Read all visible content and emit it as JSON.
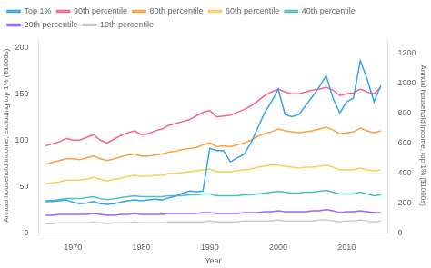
{
  "chart_data": {
    "type": "line",
    "xlabel": "Year",
    "ylabel": "Annual household income, excluding top 1% ($1000s)",
    "y2label": "Annual household income, top 1% ($1000s)",
    "x": [
      1966,
      1967,
      1968,
      1969,
      1970,
      1971,
      1972,
      1973,
      1974,
      1975,
      1976,
      1977,
      1978,
      1979,
      1980,
      1981,
      1982,
      1983,
      1984,
      1985,
      1986,
      1987,
      1988,
      1989,
      1990,
      1991,
      1992,
      1993,
      1994,
      1995,
      1996,
      1997,
      1998,
      1999,
      2000,
      2001,
      2002,
      2003,
      2004,
      2005,
      2006,
      2007,
      2008,
      2009,
      2010,
      2011,
      2012,
      2013,
      2014,
      2015
    ],
    "series": [
      {
        "name": "Top 1%",
        "axis": "y2",
        "values": [
          210,
          210,
          215,
          220,
          205,
          195,
          200,
          210,
          195,
          190,
          195,
          205,
          215,
          220,
          215,
          220,
          225,
          220,
          235,
          245,
          265,
          280,
          275,
          280,
          565,
          550,
          550,
          475,
          500,
          525,
          600,
          700,
          800,
          875,
          960,
          790,
          775,
          790,
          850,
          910,
          975,
          1050,
          900,
          800,
          875,
          900,
          1150,
          1025,
          875,
          985
        ]
      },
      {
        "name": "90th percentile",
        "values": [
          94,
          96,
          98,
          102,
          100,
          100,
          103,
          106,
          100,
          97,
          101,
          105,
          108,
          110,
          106,
          107,
          110,
          112,
          116,
          118,
          120,
          122,
          126,
          130,
          132,
          125,
          126,
          127,
          130,
          133,
          137,
          142,
          148,
          152,
          155,
          152,
          150,
          150,
          152,
          154,
          155,
          157,
          154,
          148,
          150,
          151,
          155,
          152,
          150,
          157
        ]
      },
      {
        "name": "80th percentile",
        "values": [
          74,
          76,
          78,
          80,
          80,
          79,
          81,
          83,
          80,
          78,
          80,
          82,
          84,
          85,
          83,
          83,
          84,
          85,
          87,
          88,
          90,
          91,
          92,
          95,
          97,
          93,
          94,
          93,
          95,
          97,
          100,
          104,
          107,
          109,
          112,
          110,
          109,
          108,
          109,
          110,
          112,
          114,
          111,
          107,
          108,
          109,
          113,
          110,
          108,
          110
        ]
      },
      {
        "name": "60th percentile",
        "values": [
          53,
          54,
          55,
          57,
          57,
          57,
          58,
          60,
          58,
          56,
          58,
          59,
          61,
          62,
          61,
          61,
          62,
          62,
          64,
          64,
          65,
          66,
          67,
          68,
          69,
          66,
          66,
          66,
          67,
          68,
          69,
          71,
          72,
          73,
          73,
          72,
          71,
          70,
          71,
          71,
          72,
          73,
          71,
          68,
          68,
          68,
          70,
          68,
          67,
          68
        ]
      },
      {
        "name": "40th percentile",
        "values": [
          35,
          35,
          36,
          37,
          37,
          37,
          38,
          39,
          37,
          36,
          37,
          38,
          39,
          40,
          39,
          39,
          39,
          39,
          40,
          40,
          40,
          41,
          41,
          42,
          42,
          40,
          40,
          40,
          40,
          41,
          41,
          42,
          43,
          44,
          45,
          44,
          43,
          43,
          44,
          44,
          45,
          46,
          44,
          42,
          42,
          42,
          44,
          42,
          40,
          41
        ]
      },
      {
        "name": "20th percentile",
        "values": [
          19,
          19,
          20,
          20,
          20,
          20,
          20,
          21,
          20,
          19,
          19,
          20,
          20,
          21,
          20,
          20,
          20,
          20,
          21,
          21,
          21,
          21,
          21,
          22,
          22,
          21,
          21,
          21,
          21,
          22,
          22,
          22,
          23,
          23,
          24,
          23,
          23,
          23,
          23,
          24,
          24,
          25,
          24,
          22,
          23,
          23,
          24,
          23,
          22,
          22
        ]
      },
      {
        "name": "10th percentile",
        "values": [
          10,
          10,
          11,
          11,
          11,
          11,
          11,
          12,
          11,
          10,
          11,
          11,
          11,
          12,
          11,
          11,
          11,
          11,
          12,
          12,
          12,
          12,
          12,
          12,
          13,
          12,
          12,
          12,
          12,
          13,
          13,
          13,
          13,
          13,
          14,
          13,
          13,
          13,
          13,
          13,
          14,
          14,
          13,
          12,
          13,
          13,
          14,
          13,
          12,
          13
        ]
      }
    ],
    "xlim": [
      1965,
      2016
    ],
    "xticks": [
      1970,
      1980,
      1990,
      2000,
      2010
    ],
    "ylim": [
      0,
      210
    ],
    "yticks": [
      0,
      50,
      100,
      150,
      200
    ],
    "y2lim": [
      0,
      1300
    ],
    "y2ticks": [
      0,
      200,
      400,
      600,
      800,
      1000,
      1200
    ],
    "grid": false,
    "legend": "upper left"
  }
}
